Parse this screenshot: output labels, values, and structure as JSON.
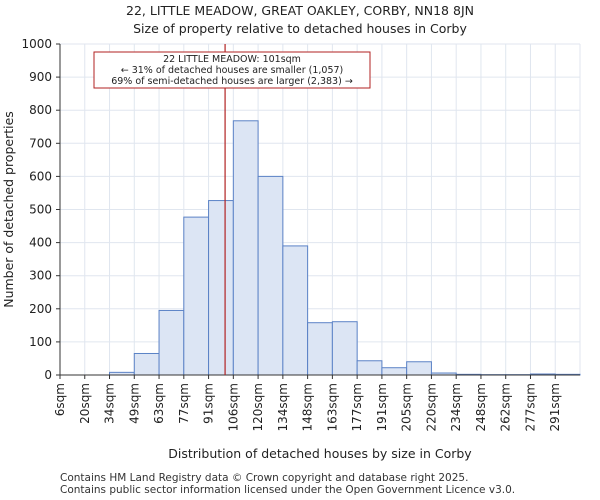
{
  "chart_data": {
    "type": "bar",
    "title": "22, LITTLE MEADOW, GREAT OAKLEY, CORBY, NN18 8JN",
    "subtitle": "Size of property relative to detached houses in Corby",
    "xlabel": "Distribution of detached houses by size in Corby",
    "ylabel": "Number of detached properties",
    "ylim": [
      0,
      1000
    ],
    "yticks": [
      0,
      100,
      200,
      300,
      400,
      500,
      600,
      700,
      800,
      900,
      1000
    ],
    "categories": [
      "6sqm",
      "20sqm",
      "34sqm",
      "49sqm",
      "63sqm",
      "77sqm",
      "91sqm",
      "106sqm",
      "120sqm",
      "134sqm",
      "148sqm",
      "163sqm",
      "177sqm",
      "191sqm",
      "205sqm",
      "220sqm",
      "234sqm",
      "248sqm",
      "262sqm",
      "277sqm",
      "291sqm"
    ],
    "values": [
      0,
      0,
      8,
      65,
      195,
      477,
      527,
      768,
      600,
      390,
      158,
      161,
      43,
      22,
      40,
      6,
      2,
      1,
      1,
      3,
      2
    ],
    "grid": true,
    "marker": {
      "value_sqm": 101,
      "label_line1": "22 LITTLE MEADOW: 101sqm",
      "label_line2": "← 31% of detached houses are smaller (1,057)",
      "label_line3": "69% of semi-detached houses are larger (2,383) →"
    }
  },
  "colors": {
    "bar_fill": "#dce5f4",
    "bar_edge": "#5b82c6",
    "marker_line": "#b22222",
    "annotation_border": "#b22222",
    "grid": "#e0e6ef"
  },
  "footer": {
    "line1": "Contains HM Land Registry data © Crown copyright and database right 2025.",
    "line2": "Contains public sector information licensed under the Open Government Licence v3.0."
  }
}
